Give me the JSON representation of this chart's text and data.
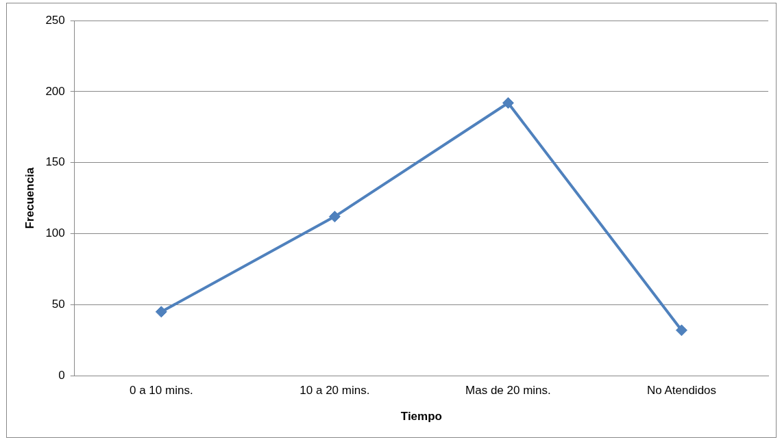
{
  "chart_data": {
    "type": "line",
    "xlabel": "Tiempo",
    "ylabel": "Frecuencia",
    "categories": [
      "0 a 10 mins.",
      "10 a 20 mins.",
      "Mas de 20 mins.",
      "No Atendidos"
    ],
    "series": [
      {
        "color": "#4f81bd",
        "values": [
          45,
          112,
          192,
          32
        ]
      }
    ],
    "ylim": [
      0,
      250
    ],
    "yticks": [
      0,
      50,
      100,
      150,
      200,
      250
    ],
    "grid": "y",
    "legend": false,
    "marker": "diamond",
    "line_style": "solid"
  }
}
